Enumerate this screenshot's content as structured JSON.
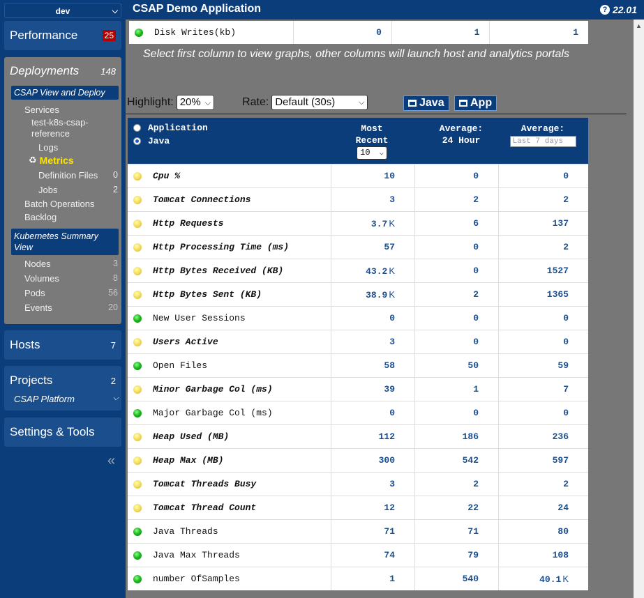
{
  "sidebar": {
    "env": "dev",
    "performance": {
      "label": "Performance",
      "alerts": "25"
    },
    "deployments": {
      "label": "Deployments",
      "count": "148"
    },
    "csap_view_label": "CSAP View and Deploy",
    "services_label": "Services",
    "service_name": "test-k8s-csap-reference",
    "logs_label": "Logs",
    "metrics_label": "Metrics",
    "definition_files": {
      "label": "Definition Files",
      "count": "0"
    },
    "jobs": {
      "label": "Jobs",
      "count": "2"
    },
    "batch_label": "Batch Operations",
    "backlog_label": "Backlog",
    "k8s_label": "Kubernetes Summary View",
    "nodes": {
      "label": "Nodes",
      "count": "3"
    },
    "volumes": {
      "label": "Volumes",
      "count": "8"
    },
    "pods": {
      "label": "Pods",
      "count": "56"
    },
    "events": {
      "label": "Events",
      "count": "20"
    },
    "hosts": {
      "label": "Hosts",
      "count": "7"
    },
    "projects": {
      "label": "Projects",
      "count": "2"
    },
    "project_select": "CSAP Platform",
    "settings_label": "Settings & Tools"
  },
  "header": {
    "title": "CSAP Demo Application",
    "version": "22.01"
  },
  "disk_row": {
    "name": "Disk Writes(kb)",
    "values": [
      "0",
      "1",
      "1"
    ]
  },
  "hint": "Select first column to view graphs, other columns will launch host and analytics portals",
  "controls": {
    "highlight_label": "Highlight:",
    "highlight_value": "20%",
    "rate_label": "Rate:",
    "rate_value": "Default (30s)",
    "java_button": "Java",
    "app_button": "App"
  },
  "table": {
    "radio_application": "Application",
    "radio_java": "Java",
    "col_recent": "Most Recent",
    "recent_select": "10",
    "col_24h": "Average: 24 Hour",
    "col_7d": "Average:",
    "days_placeholder": "Last 7 days",
    "rows": [
      {
        "name": "Cpu %",
        "status": "yellow",
        "bold": true,
        "v": [
          "10",
          "0",
          "0"
        ],
        "k": [
          "",
          "",
          ""
        ]
      },
      {
        "name": "Tomcat Connections",
        "status": "yellow",
        "bold": true,
        "v": [
          "3",
          "2",
          "2"
        ],
        "k": [
          "",
          "",
          ""
        ]
      },
      {
        "name": "Http Requests",
        "status": "yellow",
        "bold": true,
        "v": [
          "3.7",
          "6",
          "137"
        ],
        "k": [
          "K",
          "",
          ""
        ]
      },
      {
        "name": "Http Processing Time (ms)",
        "status": "yellow",
        "bold": true,
        "v": [
          "57",
          "0",
          "2"
        ],
        "k": [
          "",
          "",
          ""
        ]
      },
      {
        "name": "Http Bytes Received (KB)",
        "status": "yellow",
        "bold": true,
        "v": [
          "43.2",
          "0",
          "1527"
        ],
        "k": [
          "K",
          "",
          ""
        ]
      },
      {
        "name": "Http Bytes Sent (KB)",
        "status": "yellow",
        "bold": true,
        "v": [
          "38.9",
          "2",
          "1365"
        ],
        "k": [
          "K",
          "",
          ""
        ]
      },
      {
        "name": "New User Sessions",
        "status": "green",
        "bold": false,
        "v": [
          "0",
          "0",
          "0"
        ],
        "k": [
          "",
          "",
          ""
        ]
      },
      {
        "name": "Users Active",
        "status": "yellow",
        "bold": true,
        "v": [
          "3",
          "0",
          "0"
        ],
        "k": [
          "",
          "",
          ""
        ]
      },
      {
        "name": "Open Files",
        "status": "green",
        "bold": false,
        "v": [
          "58",
          "50",
          "59"
        ],
        "k": [
          "",
          "",
          ""
        ]
      },
      {
        "name": "Minor Garbage Col (ms)",
        "status": "yellow",
        "bold": true,
        "v": [
          "39",
          "1",
          "7"
        ],
        "k": [
          "",
          "",
          ""
        ]
      },
      {
        "name": "Major Garbage Col (ms)",
        "status": "green",
        "bold": false,
        "v": [
          "0",
          "0",
          "0"
        ],
        "k": [
          "",
          "",
          ""
        ]
      },
      {
        "name": "Heap Used (MB)",
        "status": "yellow",
        "bold": true,
        "v": [
          "112",
          "186",
          "236"
        ],
        "k": [
          "",
          "",
          ""
        ]
      },
      {
        "name": "Heap Max (MB)",
        "status": "yellow",
        "bold": true,
        "v": [
          "300",
          "542",
          "597"
        ],
        "k": [
          "",
          "",
          ""
        ]
      },
      {
        "name": "Tomcat Threads Busy",
        "status": "yellow",
        "bold": true,
        "v": [
          "3",
          "2",
          "2"
        ],
        "k": [
          "",
          "",
          ""
        ]
      },
      {
        "name": "Tomcat Thread Count",
        "status": "yellow",
        "bold": true,
        "v": [
          "12",
          "22",
          "24"
        ],
        "k": [
          "",
          "",
          ""
        ]
      },
      {
        "name": "Java Threads",
        "status": "green",
        "bold": false,
        "v": [
          "71",
          "71",
          "80"
        ],
        "k": [
          "",
          "",
          ""
        ]
      },
      {
        "name": "Java Max Threads",
        "status": "green",
        "bold": false,
        "v": [
          "74",
          "79",
          "108"
        ],
        "k": [
          "",
          "",
          ""
        ]
      },
      {
        "name": "number OfSamples",
        "status": "green",
        "bold": false,
        "v": [
          "1",
          "540",
          "40.1"
        ],
        "k": [
          "",
          "",
          "K"
        ]
      }
    ]
  }
}
